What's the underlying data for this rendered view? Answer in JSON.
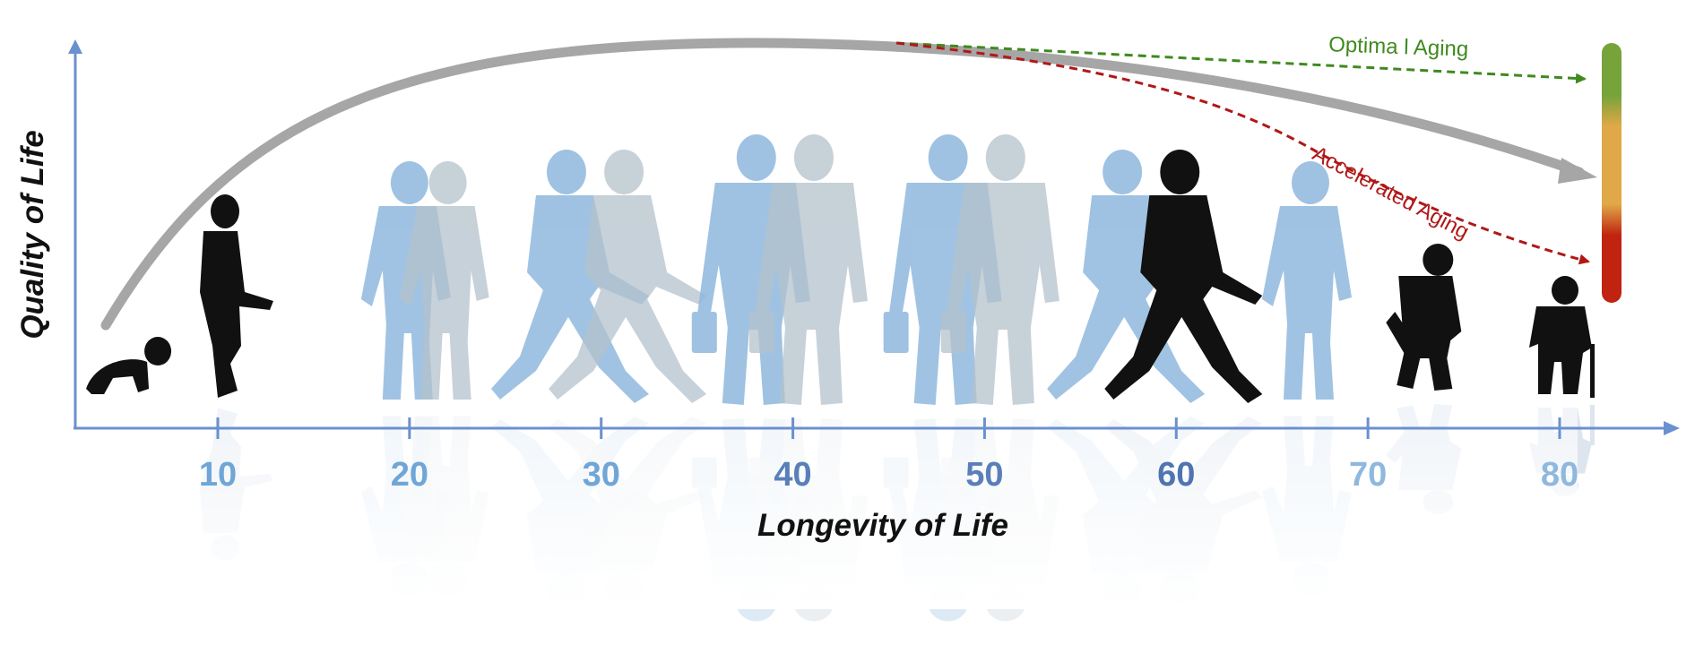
{
  "axes": {
    "x_title": "Longevity of Life",
    "y_title": "Quality of Life",
    "x_ticks": [
      {
        "label": "10",
        "value": 10,
        "color": "#6fa6d6"
      },
      {
        "label": "20",
        "value": 20,
        "color": "#6fa6d6"
      },
      {
        "label": "30",
        "value": 30,
        "color": "#6fa6d6"
      },
      {
        "label": "40",
        "value": 40,
        "color": "#5a7fb8"
      },
      {
        "label": "50",
        "value": 50,
        "color": "#5a7fb8"
      },
      {
        "label": "60",
        "value": 60,
        "color": "#4f74b2"
      },
      {
        "label": "70",
        "value": 70,
        "color": "#8fb8de"
      },
      {
        "label": "80",
        "value": 80,
        "color": "#8fb8de"
      }
    ],
    "axis_color": "#6b90cf"
  },
  "curves": {
    "optimal": {
      "label": "Optima l Aging",
      "color": "#3f8a1f"
    },
    "accelerated": {
      "label": "Accelerated Aging",
      "color": "#b01818"
    },
    "main_color": "#a6a6a6"
  },
  "scale_bar": {
    "colors": [
      "#76a33a",
      "#e0a848",
      "#c02410"
    ]
  },
  "figures": [
    {
      "name": "baby-crawling-silhouette",
      "age": 5,
      "tone": "dark",
      "pose": "crawl"
    },
    {
      "name": "child-kicking-silhouette",
      "age": 10,
      "tone": "dark",
      "pose": "kick"
    },
    {
      "name": "teen-walking-silhouette",
      "age": 20,
      "tone": "blue",
      "pose": "stand"
    },
    {
      "name": "teen-ghost-silhouette",
      "age": 22,
      "tone": "grey",
      "pose": "stand"
    },
    {
      "name": "young-adult-striding-silhouette",
      "age": 28,
      "tone": "blue",
      "pose": "stride"
    },
    {
      "name": "young-adult-ghost-silhouette",
      "age": 31,
      "tone": "grey",
      "pose": "stride"
    },
    {
      "name": "adult-briefcase-silhouette",
      "age": 38,
      "tone": "blue",
      "pose": "suit"
    },
    {
      "name": "adult-ghost-silhouette",
      "age": 41,
      "tone": "grey",
      "pose": "suit"
    },
    {
      "name": "middle-aged-shopping-silhouette",
      "age": 48,
      "tone": "blue",
      "pose": "suit"
    },
    {
      "name": "middle-aged-ghost-silhouette",
      "age": 51,
      "tone": "grey",
      "pose": "suit"
    },
    {
      "name": "older-walking-blue-silhouette",
      "age": 57,
      "tone": "blue",
      "pose": "stride"
    },
    {
      "name": "older-walking-dark-silhouette",
      "age": 60,
      "tone": "dark",
      "pose": "stride"
    },
    {
      "name": "senior-with-bag-silhouette",
      "age": 67,
      "tone": "blue",
      "pose": "stand"
    },
    {
      "name": "elderly-hunched-silhouette",
      "age": 73,
      "tone": "dark",
      "pose": "hunched"
    },
    {
      "name": "elderly-cane-silhouette",
      "age": 80,
      "tone": "dark",
      "pose": "cane"
    }
  ]
}
